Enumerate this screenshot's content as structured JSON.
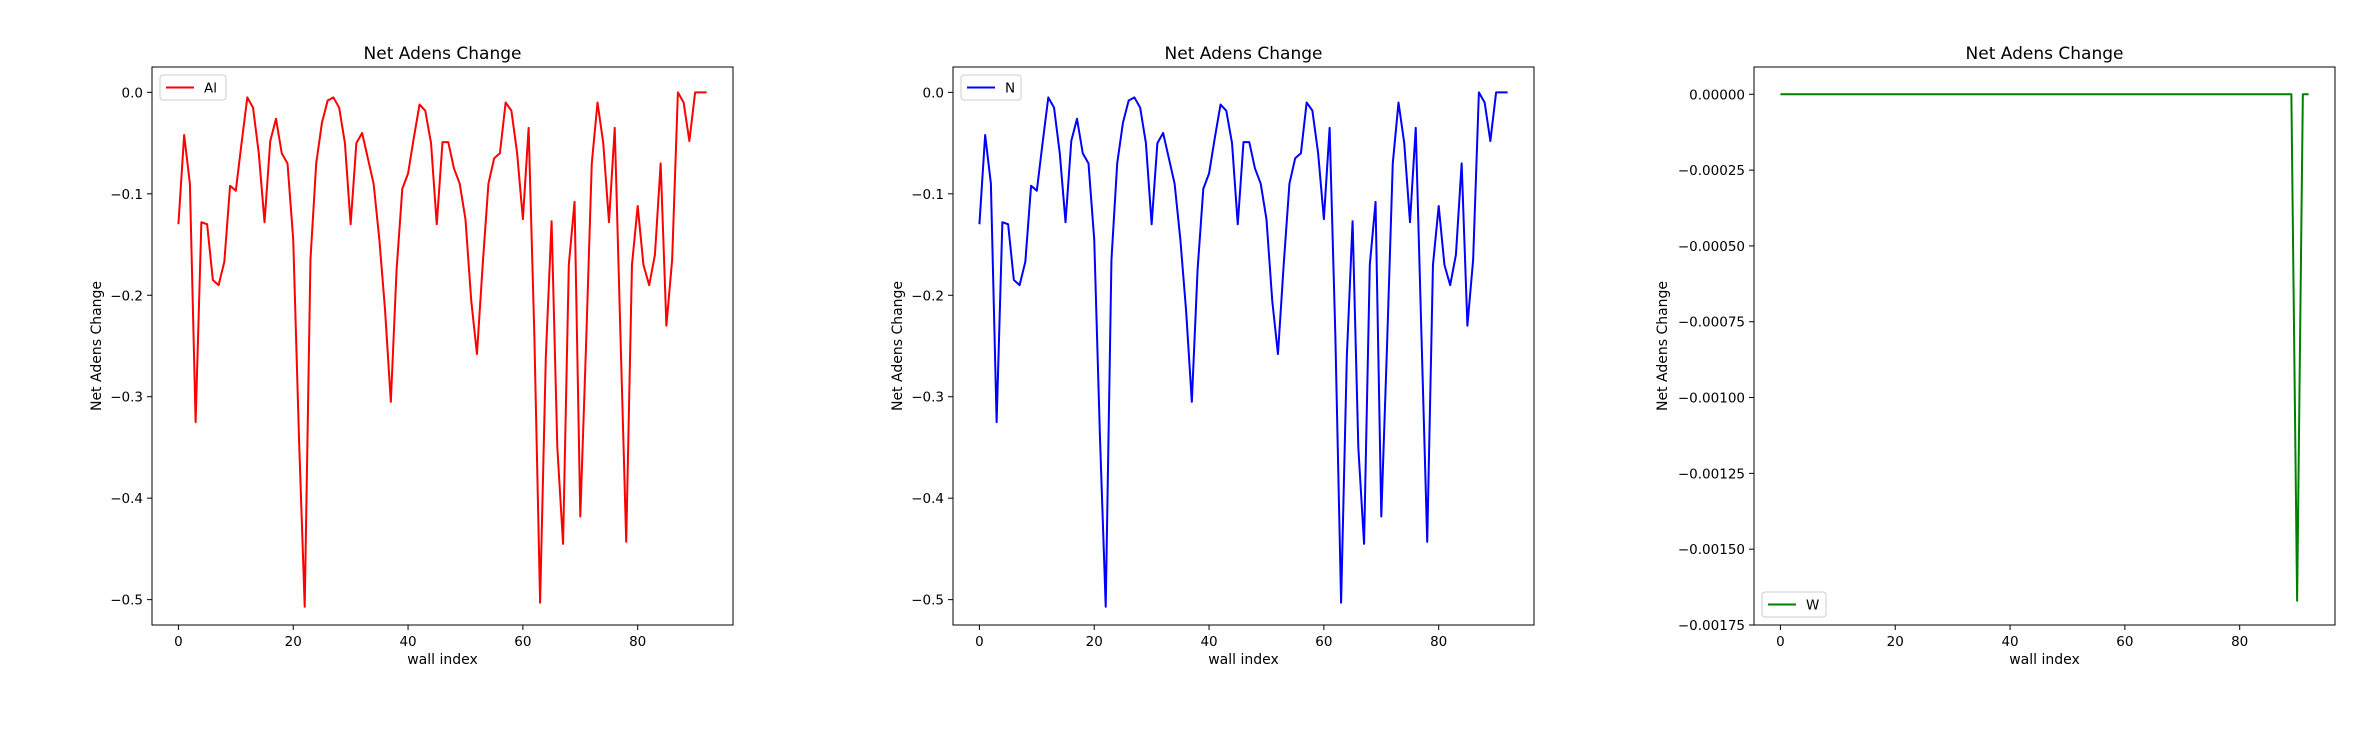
{
  "chart_data": [
    {
      "type": "line",
      "title": "Net Adens Change",
      "xlabel": "wall index",
      "ylabel": "Net Adens Change",
      "xlim": [
        -4.6,
        96.6
      ],
      "ylim": [
        -0.525,
        0.025
      ],
      "xticks": [
        0,
        20,
        40,
        60,
        80
      ],
      "xtick_labels": [
        "0",
        "20",
        "40",
        "60",
        "80"
      ],
      "yticks": [
        0.0,
        -0.1,
        -0.2,
        -0.3,
        -0.4,
        -0.5
      ],
      "ytick_labels": [
        "0.0",
        "−0.1",
        "−0.2",
        "−0.3",
        "−0.4",
        "−0.5"
      ],
      "legend_position": "upper left",
      "grid": false,
      "series": [
        {
          "name": "Al",
          "color": "#ff0000",
          "x": [
            0,
            1,
            2,
            3,
            4,
            5,
            6,
            7,
            8,
            9,
            10,
            11,
            12,
            13,
            14,
            15,
            16,
            17,
            18,
            19,
            20,
            21,
            22,
            23,
            24,
            25,
            26,
            27,
            28,
            29,
            30,
            31,
            32,
            33,
            34,
            35,
            36,
            37,
            38,
            39,
            40,
            41,
            42,
            43,
            44,
            45,
            46,
            47,
            48,
            49,
            50,
            51,
            52,
            53,
            54,
            55,
            56,
            57,
            58,
            59,
            60,
            61,
            62,
            63,
            64,
            65,
            66,
            67,
            68,
            69,
            70,
            71,
            72,
            73,
            74,
            75,
            76,
            77,
            78,
            79,
            80,
            81,
            82,
            83,
            84,
            85,
            86,
            87,
            88,
            89,
            90,
            91,
            92
          ],
          "y": [
            -0.13,
            -0.042,
            -0.09,
            -0.325,
            -0.128,
            -0.13,
            -0.185,
            -0.19,
            -0.167,
            -0.092,
            -0.097,
            -0.05,
            -0.005,
            -0.015,
            -0.06,
            -0.128,
            -0.048,
            -0.026,
            -0.06,
            -0.07,
            -0.145,
            -0.34,
            -0.507,
            -0.165,
            -0.07,
            -0.03,
            -0.008,
            -0.005,
            -0.015,
            -0.05,
            -0.13,
            -0.05,
            -0.04,
            -0.065,
            -0.09,
            -0.145,
            -0.215,
            -0.305,
            -0.175,
            -0.095,
            -0.08,
            -0.045,
            -0.012,
            -0.018,
            -0.05,
            -0.13,
            -0.049,
            -0.049,
            -0.075,
            -0.09,
            -0.125,
            -0.205,
            -0.258,
            -0.17,
            -0.09,
            -0.065,
            -0.06,
            -0.01,
            -0.018,
            -0.06,
            -0.125,
            -0.035,
            -0.24,
            -0.503,
            -0.26,
            -0.127,
            -0.35,
            -0.445,
            -0.17,
            -0.108,
            -0.418,
            -0.25,
            -0.07,
            -0.01,
            -0.05,
            -0.128,
            -0.035,
            -0.24,
            -0.443,
            -0.17,
            -0.112,
            -0.17,
            -0.19,
            -0.16,
            -0.07,
            -0.23,
            -0.165,
            0.0,
            -0.01,
            -0.048,
            0.0,
            0.0,
            0.0
          ]
        }
      ]
    },
    {
      "type": "line",
      "title": "Net Adens Change",
      "xlabel": "wall index",
      "ylabel": "Net Adens Change",
      "xlim": [
        -4.6,
        96.6
      ],
      "ylim": [
        -0.525,
        0.025
      ],
      "xticks": [
        0,
        20,
        40,
        60,
        80
      ],
      "xtick_labels": [
        "0",
        "20",
        "40",
        "60",
        "80"
      ],
      "yticks": [
        0.0,
        -0.1,
        -0.2,
        -0.3,
        -0.4,
        -0.5
      ],
      "ytick_labels": [
        "0.0",
        "−0.1",
        "−0.2",
        "−0.3",
        "−0.4",
        "−0.5"
      ],
      "legend_position": "upper left",
      "grid": false,
      "series": [
        {
          "name": "N",
          "color": "#0000ff",
          "x": [
            0,
            1,
            2,
            3,
            4,
            5,
            6,
            7,
            8,
            9,
            10,
            11,
            12,
            13,
            14,
            15,
            16,
            17,
            18,
            19,
            20,
            21,
            22,
            23,
            24,
            25,
            26,
            27,
            28,
            29,
            30,
            31,
            32,
            33,
            34,
            35,
            36,
            37,
            38,
            39,
            40,
            41,
            42,
            43,
            44,
            45,
            46,
            47,
            48,
            49,
            50,
            51,
            52,
            53,
            54,
            55,
            56,
            57,
            58,
            59,
            60,
            61,
            62,
            63,
            64,
            65,
            66,
            67,
            68,
            69,
            70,
            71,
            72,
            73,
            74,
            75,
            76,
            77,
            78,
            79,
            80,
            81,
            82,
            83,
            84,
            85,
            86,
            87,
            88,
            89,
            90,
            91,
            92
          ],
          "y": [
            -0.13,
            -0.042,
            -0.09,
            -0.325,
            -0.128,
            -0.13,
            -0.185,
            -0.19,
            -0.167,
            -0.092,
            -0.097,
            -0.05,
            -0.005,
            -0.015,
            -0.06,
            -0.128,
            -0.048,
            -0.026,
            -0.06,
            -0.07,
            -0.145,
            -0.34,
            -0.507,
            -0.165,
            -0.07,
            -0.03,
            -0.008,
            -0.005,
            -0.015,
            -0.05,
            -0.13,
            -0.05,
            -0.04,
            -0.065,
            -0.09,
            -0.145,
            -0.215,
            -0.305,
            -0.175,
            -0.095,
            -0.08,
            -0.045,
            -0.012,
            -0.018,
            -0.05,
            -0.13,
            -0.049,
            -0.049,
            -0.075,
            -0.09,
            -0.125,
            -0.205,
            -0.258,
            -0.17,
            -0.09,
            -0.065,
            -0.06,
            -0.01,
            -0.018,
            -0.06,
            -0.125,
            -0.035,
            -0.24,
            -0.503,
            -0.26,
            -0.127,
            -0.35,
            -0.445,
            -0.17,
            -0.108,
            -0.418,
            -0.25,
            -0.07,
            -0.01,
            -0.05,
            -0.128,
            -0.035,
            -0.24,
            -0.443,
            -0.17,
            -0.112,
            -0.17,
            -0.19,
            -0.16,
            -0.07,
            -0.23,
            -0.165,
            0.0,
            -0.01,
            -0.048,
            0.0,
            0.0,
            0.0
          ]
        }
      ]
    },
    {
      "type": "line",
      "title": "Net Adens Change",
      "xlabel": "wall index",
      "ylabel": "Net Adens Change",
      "xlim": [
        -4.6,
        96.6
      ],
      "ylim": [
        -0.00175,
        9e-05
      ],
      "xticks": [
        0,
        20,
        40,
        60,
        80
      ],
      "xtick_labels": [
        "0",
        "20",
        "40",
        "60",
        "80"
      ],
      "yticks": [
        0.0,
        -0.00025,
        -0.0005,
        -0.00075,
        -0.001,
        -0.00125,
        -0.0015,
        -0.00175
      ],
      "ytick_labels": [
        "0.00000",
        "−0.00025",
        "−0.00050",
        "−0.00075",
        "−0.00100",
        "−0.00125",
        "−0.00150",
        "−0.00175"
      ],
      "legend_position": "lower left",
      "grid": false,
      "series": [
        {
          "name": "W",
          "color": "#008000",
          "x": [
            0,
            89,
            90,
            91,
            92
          ],
          "y": [
            0.0,
            0.0,
            -0.00167,
            0.0,
            0.0
          ]
        }
      ]
    }
  ]
}
